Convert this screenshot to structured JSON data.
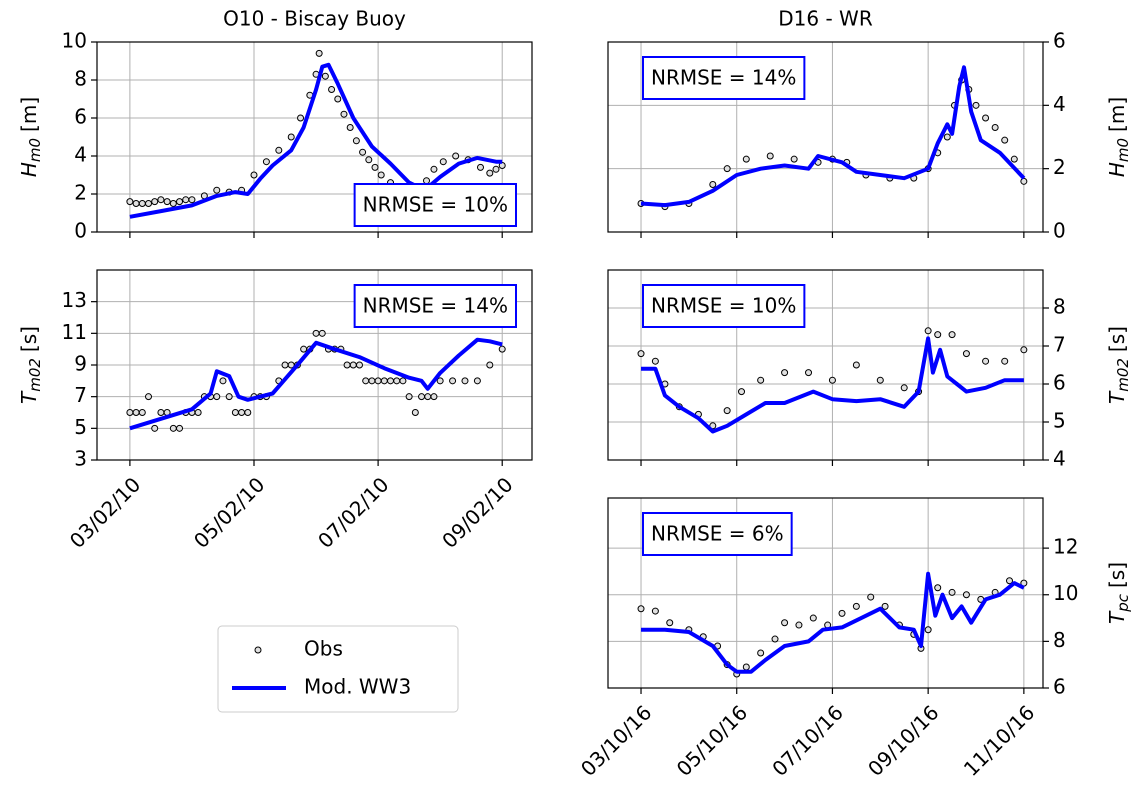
{
  "chart_data": [
    {
      "type": "line",
      "title": "O10 - Biscay Buoy",
      "ylabel": "H",
      "ylabel_sub": "m0",
      "ylabel_unit": "[m]",
      "yaxis_side": "left",
      "grid": true,
      "annotation": "NRMSE = 10%",
      "annotation_loc": "lower right",
      "xticklabels": false,
      "xlim": [
        -0.53,
        6.48
      ],
      "xticks": [
        0,
        2,
        4,
        6
      ],
      "ylim": [
        0,
        10
      ],
      "yticks": [
        0,
        2,
        4,
        6,
        8,
        10
      ],
      "obs": {
        "x": [
          0,
          0.1,
          0.2,
          0.3,
          0.4,
          0.5,
          0.6,
          0.7,
          0.8,
          0.9,
          1.0,
          1.2,
          1.4,
          1.6,
          1.8,
          2.0,
          2.2,
          2.4,
          2.6,
          2.75,
          2.9,
          3.0,
          3.05,
          3.15,
          3.25,
          3.35,
          3.45,
          3.55,
          3.65,
          3.75,
          3.85,
          3.95,
          4.05,
          4.2,
          4.25,
          4.78,
          4.9,
          5.05,
          5.25,
          5.45,
          5.65,
          5.8,
          5.9,
          6.0
        ],
        "values": [
          1.6,
          1.5,
          1.5,
          1.5,
          1.6,
          1.7,
          1.6,
          1.5,
          1.6,
          1.7,
          1.7,
          1.9,
          2.2,
          2.1,
          2.2,
          3.0,
          3.7,
          4.3,
          5.0,
          6.0,
          7.2,
          8.3,
          9.4,
          8.2,
          7.5,
          7.0,
          6.2,
          5.5,
          4.8,
          4.2,
          3.8,
          3.4,
          3.0,
          2.6,
          2.4,
          2.7,
          3.3,
          3.7,
          4.0,
          3.8,
          3.4,
          3.1,
          3.3,
          3.5
        ]
      },
      "model": {
        "x": [
          0,
          0.5,
          1.0,
          1.4,
          1.7,
          1.9,
          2.1,
          2.3,
          2.6,
          2.8,
          3.0,
          3.1,
          3.2,
          3.35,
          3.6,
          3.9,
          4.2,
          4.5,
          4.75,
          5.0,
          5.3,
          5.6,
          5.9,
          6.0
        ],
        "values": [
          0.8,
          1.1,
          1.4,
          1.9,
          2.1,
          2.0,
          2.8,
          3.5,
          4.3,
          5.5,
          7.5,
          8.7,
          8.8,
          7.8,
          6.0,
          4.5,
          3.6,
          2.6,
          2.2,
          2.9,
          3.6,
          3.9,
          3.7,
          3.7
        ]
      }
    },
    {
      "type": "line",
      "ylabel": "T",
      "ylabel_sub": "m02",
      "ylabel_unit": "[s]",
      "yaxis_side": "left",
      "grid": true,
      "annotation": "NRMSE = 14%",
      "annotation_loc": "upper right",
      "xticklabels": true,
      "xlim": [
        -0.53,
        6.48
      ],
      "xticks": [
        {
          "value": 0,
          "label": "03/02/10"
        },
        {
          "value": 2,
          "label": "05/02/10"
        },
        {
          "value": 4,
          "label": "07/02/10"
        },
        {
          "value": 6,
          "label": "09/02/10"
        }
      ],
      "ylim": [
        3,
        15
      ],
      "yticks": [
        3,
        5,
        7,
        9,
        11,
        13
      ],
      "obs": {
        "x": [
          0,
          0.1,
          0.2,
          0.3,
          0.4,
          0.5,
          0.6,
          0.7,
          0.8,
          0.9,
          1.0,
          1.1,
          1.2,
          1.3,
          1.4,
          1.5,
          1.6,
          1.7,
          1.8,
          1.9,
          2.0,
          2.1,
          2.2,
          2.4,
          2.5,
          2.6,
          2.7,
          2.8,
          2.9,
          3.0,
          3.1,
          3.2,
          3.3,
          3.4,
          3.5,
          3.6,
          3.7,
          3.8,
          3.9,
          4.0,
          4.1,
          4.2,
          4.3,
          4.4,
          4.5,
          4.6,
          4.7,
          4.8,
          4.9,
          5.0,
          5.2,
          5.4,
          5.6,
          5.8,
          6.0
        ],
        "values": [
          6,
          6,
          6,
          7,
          5,
          6,
          6,
          5,
          5,
          6,
          6,
          6,
          7,
          7,
          7,
          8,
          7,
          6,
          6,
          6,
          7,
          7,
          7,
          8,
          9,
          9,
          9,
          10,
          10,
          11,
          11,
          10,
          10,
          10,
          9,
          9,
          9,
          8,
          8,
          8,
          8,
          8,
          8,
          8,
          7,
          6,
          7,
          7,
          7,
          8,
          8,
          8,
          8,
          9,
          10
        ]
      },
      "model": {
        "x": [
          0,
          0.5,
          1.0,
          1.3,
          1.4,
          1.6,
          1.75,
          1.9,
          2.3,
          2.7,
          3.0,
          3.3,
          3.7,
          4.1,
          4.5,
          4.7,
          4.8,
          5.0,
          5.3,
          5.6,
          5.8,
          6.0
        ],
        "values": [
          5.0,
          5.6,
          6.2,
          7.2,
          8.6,
          8.3,
          7.0,
          6.8,
          7.2,
          9.0,
          10.4,
          10.0,
          9.5,
          8.8,
          8.2,
          8.0,
          7.5,
          8.5,
          9.6,
          10.6,
          10.5,
          10.3
        ]
      }
    },
    {
      "type": "line",
      "title": "D16 - WR",
      "ylabel": "H",
      "ylabel_sub": "m0",
      "ylabel_unit": "[m]",
      "yaxis_side": "right",
      "grid": true,
      "annotation": "NRMSE = 14%",
      "annotation_loc": "upper left",
      "xticklabels": false,
      "xlim": [
        -0.69,
        8.4
      ],
      "xticks": [
        0,
        2,
        4,
        6,
        8
      ],
      "ylim": [
        0,
        6
      ],
      "yticks": [
        0,
        2,
        4,
        6
      ],
      "obs": {
        "x": [
          0,
          0.5,
          1.0,
          1.5,
          1.8,
          2.2,
          2.7,
          3.2,
          3.7,
          4.0,
          4.3,
          4.7,
          5.2,
          5.7,
          6.0,
          6.2,
          6.4,
          6.55,
          6.7,
          6.85,
          7.0,
          7.2,
          7.4,
          7.6,
          7.8,
          8
        ],
        "values": [
          0.9,
          0.8,
          0.9,
          1.5,
          2.0,
          2.3,
          2.4,
          2.3,
          2.2,
          2.3,
          2.2,
          1.8,
          1.7,
          1.7,
          2.0,
          2.5,
          3.0,
          4.0,
          4.8,
          4.5,
          4.0,
          3.6,
          3.3,
          2.9,
          2.3,
          1.6
        ]
      },
      "model": {
        "x": [
          0,
          0.5,
          1.0,
          1.5,
          2.0,
          2.5,
          3,
          3.5,
          3.7,
          4.2,
          4.5,
          5,
          5.5,
          6,
          6.2,
          6.4,
          6.5,
          6.65,
          6.75,
          6.9,
          7.1,
          7.5,
          8
        ],
        "values": [
          0.9,
          0.85,
          0.95,
          1.3,
          1.8,
          2.0,
          2.1,
          2.0,
          2.4,
          2.2,
          1.9,
          1.8,
          1.7,
          2.0,
          2.8,
          3.4,
          3.1,
          4.6,
          5.2,
          3.8,
          2.9,
          2.5,
          1.7
        ]
      }
    },
    {
      "type": "line",
      "ylabel": "T",
      "ylabel_sub": "m02",
      "ylabel_unit": "[s]",
      "yaxis_side": "right",
      "grid": true,
      "annotation": "NRMSE = 10%",
      "annotation_loc": "upper left",
      "xticklabels": false,
      "xlim": [
        -0.69,
        8.4
      ],
      "xticks": [
        0,
        2,
        4,
        6,
        8
      ],
      "ylim": [
        4,
        9
      ],
      "yticks": [
        4,
        5,
        6,
        7,
        8
      ],
      "obs": {
        "x": [
          0,
          0.3,
          0.5,
          0.8,
          1.2,
          1.5,
          1.8,
          2.1,
          2.5,
          3.0,
          3.5,
          4.0,
          4.5,
          5.0,
          5.5,
          5.8,
          6.0,
          6.2,
          6.5,
          6.8,
          7.2,
          7.6,
          8
        ],
        "values": [
          6.8,
          6.6,
          6.0,
          5.4,
          5.2,
          4.9,
          5.3,
          5.8,
          6.1,
          6.3,
          6.3,
          6.1,
          6.5,
          6.1,
          5.9,
          5.8,
          7.4,
          7.3,
          7.3,
          6.8,
          6.6,
          6.6,
          6.9
        ]
      },
      "model": {
        "x": [
          0,
          0.3,
          0.5,
          0.8,
          1.2,
          1.5,
          1.8,
          2.2,
          2.6,
          3.0,
          3.6,
          4.0,
          4.5,
          5.0,
          5.5,
          5.8,
          6.0,
          6.1,
          6.25,
          6.4,
          6.6,
          6.8,
          7.2,
          7.6,
          8
        ],
        "values": [
          6.4,
          6.4,
          5.7,
          5.4,
          5.1,
          4.75,
          4.9,
          5.2,
          5.5,
          5.5,
          5.8,
          5.6,
          5.55,
          5.6,
          5.4,
          5.8,
          7.2,
          6.3,
          6.9,
          6.2,
          6.0,
          5.8,
          5.9,
          6.1,
          6.1
        ]
      }
    },
    {
      "type": "line",
      "ylabel": "T",
      "ylabel_sub": "pc",
      "ylabel_unit": "[s]",
      "yaxis_side": "right",
      "grid": true,
      "annotation": "NRMSE = 6%",
      "annotation_loc": "upper left",
      "xticklabels": true,
      "xlim": [
        -0.69,
        8.4
      ],
      "xticks": [
        {
          "value": 0,
          "label": "03/10/16"
        },
        {
          "value": 2,
          "label": "05/10/16"
        },
        {
          "value": 4,
          "label": "07/10/16"
        },
        {
          "value": 6,
          "label": "09/10/16"
        },
        {
          "value": 8,
          "label": "11/10/16"
        }
      ],
      "ylim": [
        6,
        14.15
      ],
      "yticks": [
        6,
        8,
        10,
        12
      ],
      "obs": {
        "x": [
          0,
          0.3,
          0.6,
          1.0,
          1.3,
          1.6,
          1.8,
          2.0,
          2.2,
          2.5,
          2.8,
          3.0,
          3.3,
          3.6,
          3.9,
          4.2,
          4.5,
          4.8,
          5.1,
          5.4,
          5.7,
          5.85,
          6.0,
          6.2,
          6.5,
          6.8,
          7.1,
          7.4,
          7.7,
          8
        ],
        "values": [
          9.4,
          9.3,
          8.8,
          8.5,
          8.2,
          7.8,
          7.0,
          6.6,
          6.9,
          7.5,
          8.1,
          8.8,
          8.7,
          9.0,
          8.7,
          9.2,
          9.5,
          9.9,
          9.5,
          8.7,
          8.3,
          7.7,
          8.5,
          10.3,
          10.1,
          10.0,
          9.8,
          10.1,
          10.6,
          10.5
        ]
      },
      "model": {
        "x": [
          0,
          0.5,
          1.0,
          1.5,
          1.8,
          2.0,
          2.3,
          2.6,
          3.0,
          3.5,
          3.8,
          4.2,
          4.6,
          5.0,
          5.4,
          5.7,
          5.85,
          6.0,
          6.15,
          6.3,
          6.5,
          6.7,
          6.9,
          7.2,
          7.5,
          7.8,
          8
        ],
        "values": [
          8.5,
          8.5,
          8.4,
          7.8,
          7.0,
          6.7,
          6.7,
          7.2,
          7.8,
          8.0,
          8.5,
          8.6,
          9.0,
          9.4,
          8.6,
          8.5,
          7.8,
          10.9,
          9.1,
          10.0,
          9.0,
          9.5,
          8.8,
          9.8,
          10.0,
          10.5,
          10.3
        ]
      }
    }
  ],
  "legend": [
    {
      "name": "Obs",
      "color": "#000000"
    },
    {
      "name": "Mod. WW3",
      "color": "#0000ff"
    }
  ]
}
